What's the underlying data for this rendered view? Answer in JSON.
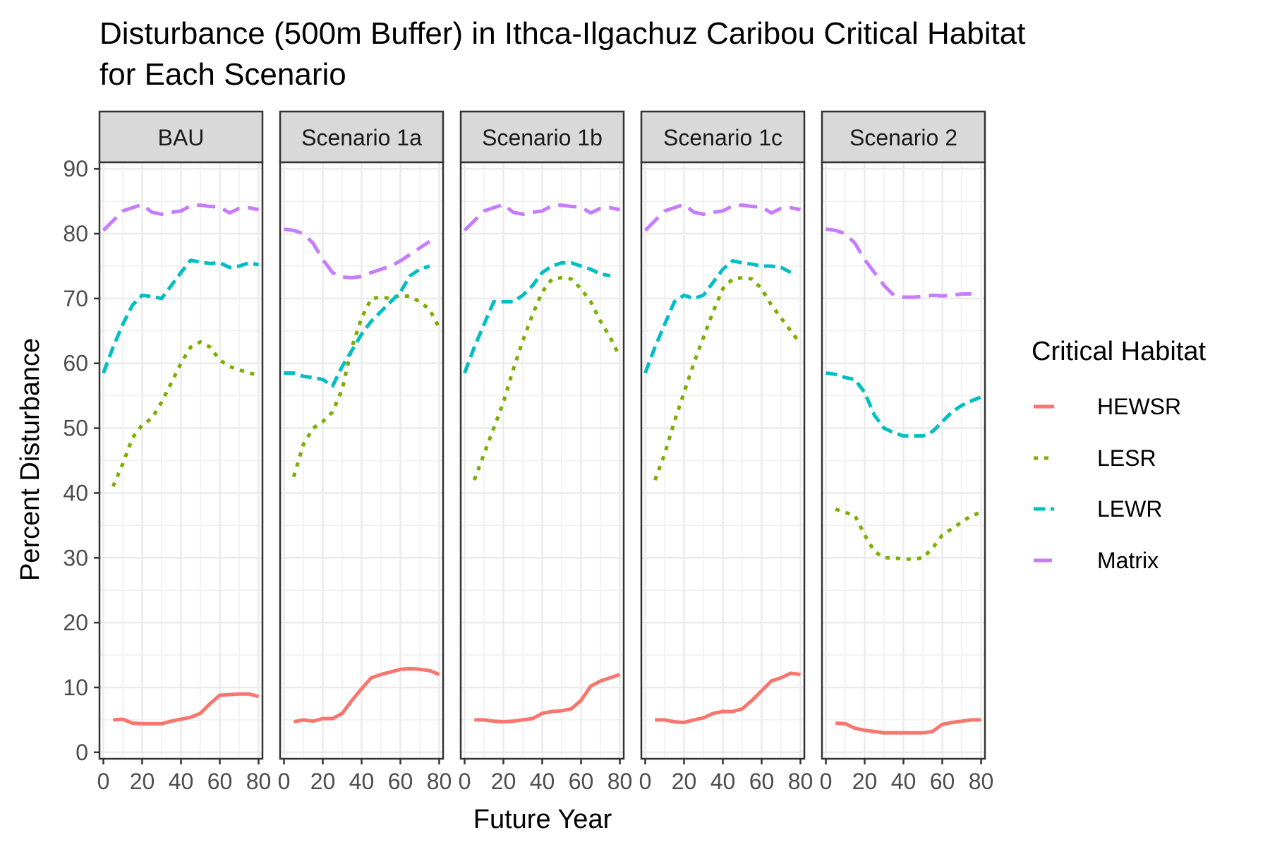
{
  "chart_data": {
    "type": "line",
    "title": "Disturbance (500m Buffer) in Ithca-Ilgachuz Caribou Critical Habitat",
    "title_line2": "for Each Scenario",
    "xlabel": "Future Year",
    "ylabel": "Percent Disturbance",
    "xlim": [
      -2,
      82
    ],
    "ylim": [
      -1,
      91
    ],
    "x_ticks": [
      0,
      20,
      40,
      60,
      80
    ],
    "y_ticks": [
      0,
      10,
      20,
      30,
      40,
      50,
      60,
      70,
      80,
      90
    ],
    "grid": true,
    "legend": {
      "title": "Critical Habitat",
      "placement": "right",
      "entries": [
        "HEWSR",
        "LESR",
        "LEWR",
        "Matrix"
      ]
    },
    "series_styles": {
      "HEWSR": {
        "color": "#F8766D",
        "dash": "solid"
      },
      "LESR": {
        "color": "#7CAE00",
        "dash": "dotted"
      },
      "LEWR": {
        "color": "#00BFC4",
        "dash": "dashed"
      },
      "Matrix": {
        "color": "#C77CFF",
        "dash": "longdash"
      }
    },
    "panels": [
      {
        "name": "BAU",
        "series": [
          {
            "name": "HEWSR",
            "x": [
              5,
              10,
              15,
              20,
              25,
              30,
              35,
              40,
              45,
              50,
              55,
              60,
              65,
              70,
              75,
              80
            ],
            "y": [
              5,
              5.1,
              4.5,
              4.4,
              4.4,
              4.4,
              4.8,
              5.1,
              5.4,
              6,
              7.5,
              8.8,
              8.9,
              9,
              9,
              8.6
            ]
          },
          {
            "name": "LESR",
            "x": [
              5,
              10,
              15,
              20,
              25,
              30,
              35,
              40,
              45,
              50,
              55,
              60,
              65,
              70,
              75,
              80
            ],
            "y": [
              41,
              44.5,
              48.5,
              50.5,
              51.5,
              54,
              57,
              60,
              62.5,
              63.3,
              62.5,
              60.5,
              59.5,
              59,
              58.5,
              58.2
            ]
          },
          {
            "name": "LEWR",
            "x": [
              0,
              5,
              10,
              15,
              20,
              25,
              30,
              35,
              40,
              45,
              50,
              55,
              60,
              65,
              70,
              75,
              80
            ],
            "y": [
              58.5,
              62.5,
              66,
              69,
              70.5,
              70.3,
              70,
              72,
              74,
              75.9,
              75.6,
              75.4,
              75.5,
              74.8,
              75,
              75.5,
              75.2
            ]
          },
          {
            "name": "Matrix",
            "x": [
              0,
              5,
              10,
              15,
              20,
              25,
              30,
              35,
              40,
              45,
              50,
              55,
              60,
              65,
              70,
              75,
              80
            ],
            "y": [
              80.5,
              82,
              83.5,
              84,
              84.5,
              83.3,
              83,
              83.3,
              83.5,
              84.3,
              84.4,
              84.2,
              84.1,
              83.2,
              83.9,
              84,
              83.7
            ]
          }
        ]
      },
      {
        "name": "Scenario 1a",
        "series": [
          {
            "name": "HEWSR",
            "x": [
              5,
              10,
              15,
              20,
              25,
              30,
              35,
              40,
              45,
              50,
              55,
              60,
              65,
              70,
              75,
              80
            ],
            "y": [
              4.7,
              5,
              4.8,
              5.2,
              5.2,
              6,
              8,
              9.8,
              11.5,
              12,
              12.4,
              12.8,
              12.9,
              12.8,
              12.6,
              12
            ]
          },
          {
            "name": "LESR",
            "x": [
              5,
              10,
              15,
              20,
              25,
              30,
              35,
              40,
              45,
              50,
              55,
              60,
              65,
              70,
              75,
              80
            ],
            "y": [
              42.5,
              47.5,
              50,
              51,
              52.5,
              56,
              62.5,
              67,
              70,
              70.2,
              70,
              70.5,
              70.3,
              69.5,
              68.3,
              65.5
            ]
          },
          {
            "name": "LEWR",
            "x": [
              0,
              5,
              10,
              15,
              20,
              25,
              30,
              35,
              40,
              45,
              50,
              55,
              60,
              65,
              70,
              75
            ],
            "y": [
              58.5,
              58.5,
              58,
              57.8,
              57.5,
              56.5,
              59.5,
              62,
              64.5,
              66.5,
              68,
              69.5,
              71,
              73.5,
              74.5,
              75
            ]
          },
          {
            "name": "Matrix",
            "x": [
              0,
              5,
              10,
              15,
              20,
              25,
              30,
              35,
              40,
              45,
              50,
              55,
              60,
              65,
              70,
              75
            ],
            "y": [
              80.7,
              80.5,
              80,
              78.5,
              76,
              74,
              73.3,
              73.2,
              73.4,
              74,
              74.5,
              75,
              75.8,
              76.8,
              77.8,
              78.8
            ]
          }
        ]
      },
      {
        "name": "Scenario 1b",
        "series": [
          {
            "name": "HEWSR",
            "x": [
              5,
              10,
              15,
              20,
              25,
              30,
              35,
              40,
              45,
              50,
              55,
              60,
              65,
              70,
              75,
              80
            ],
            "y": [
              5,
              5,
              4.8,
              4.7,
              4.8,
              5,
              5.2,
              6,
              6.3,
              6.4,
              6.7,
              8,
              10.2,
              11,
              11.5,
              12
            ]
          },
          {
            "name": "LESR",
            "x": [
              5,
              10,
              15,
              20,
              25,
              30,
              35,
              40,
              45,
              50,
              55,
              60,
              65,
              70,
              75,
              80
            ],
            "y": [
              42,
              46,
              50,
              54,
              59,
              63.5,
              67.5,
              71,
              73,
              73.2,
              73,
              71.5,
              69.5,
              66.5,
              64,
              61
            ]
          },
          {
            "name": "LEWR",
            "x": [
              0,
              5,
              10,
              15,
              20,
              25,
              30,
              35,
              40,
              45,
              50,
              55,
              60,
              65,
              70,
              75
            ],
            "y": [
              58.5,
              62.5,
              66,
              69.5,
              69.5,
              69.5,
              70.5,
              72,
              74,
              75,
              75.5,
              75.5,
              75,
              74.5,
              73.8,
              73.5
            ]
          },
          {
            "name": "Matrix",
            "x": [
              0,
              5,
              10,
              15,
              20,
              25,
              30,
              35,
              40,
              45,
              50,
              55,
              60,
              65,
              70,
              75,
              80
            ],
            "y": [
              80.5,
              82,
              83.5,
              84,
              84.5,
              83.3,
              83,
              83.3,
              83.5,
              84.3,
              84.4,
              84.2,
              84.1,
              83.2,
              83.9,
              84,
              83.7
            ]
          }
        ]
      },
      {
        "name": "Scenario 1c",
        "series": [
          {
            "name": "HEWSR",
            "x": [
              5,
              10,
              15,
              20,
              25,
              30,
              35,
              40,
              45,
              50,
              55,
              60,
              65,
              70,
              75,
              80
            ],
            "y": [
              5,
              5,
              4.7,
              4.6,
              5,
              5.3,
              6,
              6.3,
              6.3,
              6.7,
              8,
              9.5,
              11,
              11.5,
              12.2,
              12
            ]
          },
          {
            "name": "LESR",
            "x": [
              5,
              10,
              15,
              20,
              25,
              30,
              35,
              40,
              45,
              50,
              55,
              60,
              65,
              70,
              75,
              80
            ],
            "y": [
              42,
              46,
              51,
              55.5,
              60,
              64,
              68,
              71.5,
              73,
              73.2,
              73,
              71.5,
              69,
              67,
              65,
              63
            ]
          },
          {
            "name": "LEWR",
            "x": [
              0,
              5,
              10,
              15,
              20,
              25,
              30,
              35,
              40,
              45,
              50,
              55,
              60,
              65,
              70,
              75
            ],
            "y": [
              58.5,
              62.5,
              66,
              69.5,
              70.5,
              70,
              70.5,
              72.5,
              74.5,
              75.8,
              75.5,
              75.3,
              75,
              75,
              74.8,
              74
            ]
          },
          {
            "name": "Matrix",
            "x": [
              0,
              5,
              10,
              15,
              20,
              25,
              30,
              35,
              40,
              45,
              50,
              55,
              60,
              65,
              70,
              75,
              80
            ],
            "y": [
              80.5,
              82,
              83.5,
              84,
              84.5,
              83.3,
              83,
              83.3,
              83.5,
              84.3,
              84.4,
              84.2,
              84.1,
              83.2,
              83.9,
              84,
              83.7
            ]
          }
        ]
      },
      {
        "name": "Scenario 2",
        "series": [
          {
            "name": "HEWSR",
            "x": [
              5,
              10,
              15,
              20,
              25,
              30,
              35,
              40,
              45,
              50,
              55,
              60,
              65,
              70,
              75,
              80
            ],
            "y": [
              4.5,
              4.4,
              3.7,
              3.4,
              3.2,
              3,
              3,
              3,
              3,
              3,
              3.2,
              4.3,
              4.6,
              4.8,
              5,
              5
            ]
          },
          {
            "name": "LESR",
            "x": [
              5,
              10,
              15,
              20,
              25,
              30,
              35,
              40,
              45,
              50,
              55,
              60,
              65,
              70,
              75,
              80
            ],
            "y": [
              37.5,
              37,
              36.5,
              33.5,
              31,
              30,
              30,
              29.8,
              29.8,
              30,
              31.5,
              33.5,
              34.5,
              35.5,
              36.5,
              37
            ]
          },
          {
            "name": "LEWR",
            "x": [
              0,
              5,
              10,
              15,
              20,
              25,
              30,
              35,
              40,
              45,
              50,
              55,
              60,
              65,
              70,
              75,
              80
            ],
            "y": [
              58.5,
              58.3,
              57.8,
              57.5,
              55.5,
              52,
              50,
              49.3,
              48.8,
              48.8,
              48.8,
              49.5,
              51,
              52.5,
              53.5,
              54.2,
              54.8
            ]
          },
          {
            "name": "Matrix",
            "x": [
              0,
              5,
              10,
              15,
              20,
              25,
              30,
              35,
              40,
              45,
              50,
              55,
              60,
              65,
              70,
              75
            ],
            "y": [
              80.7,
              80.5,
              80,
              78.5,
              76,
              74,
              72,
              70.5,
              70.2,
              70.2,
              70.3,
              70.5,
              70.4,
              70.5,
              70.7,
              70.7
            ]
          }
        ]
      }
    ]
  }
}
